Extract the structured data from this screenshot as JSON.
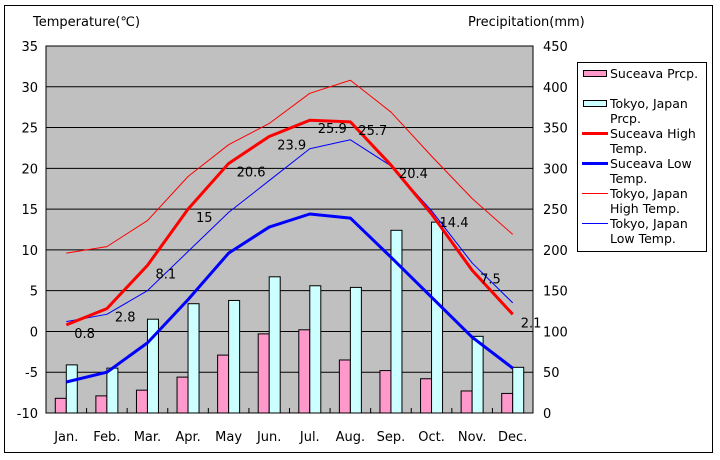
{
  "chart_data": {
    "type": "bar+line",
    "categories": [
      "Jan.",
      "Feb.",
      "Mar.",
      "Apr.",
      "May",
      "Jun.",
      "Jul.",
      "Aug.",
      "Sep.",
      "Oct.",
      "Nov.",
      "Dec."
    ],
    "y_left": {
      "label": "Temperature(℃)",
      "range": [
        -10,
        35
      ],
      "ticks": [
        "35",
        "30",
        "25",
        "20",
        "15",
        "10",
        "5",
        "0",
        "-5",
        "-10"
      ]
    },
    "y_right": {
      "label": "Precipitation(mm)",
      "range": [
        0,
        450
      ],
      "ticks": [
        "450",
        "400",
        "350",
        "300",
        "250",
        "200",
        "150",
        "100",
        "50",
        "0"
      ]
    },
    "grid": true,
    "legend_position": "right",
    "bar_series": [
      {
        "name": "Suceava Prcp.",
        "color": "#ff99cc",
        "values": [
          18,
          21,
          28,
          44,
          71,
          97,
          102,
          65,
          52,
          42,
          27,
          24
        ]
      },
      {
        "name": "Tokyo, Japan Prcp.",
        "color": "#ccffff",
        "values": [
          59,
          55,
          115,
          134,
          138,
          167,
          156,
          154,
          224,
          234,
          94,
          56
        ]
      }
    ],
    "line_series": [
      {
        "name": "Suceava High Temp.",
        "color": "#ff0000",
        "width": "thick",
        "values": [
          0.8,
          2.8,
          8.1,
          15,
          20.6,
          23.9,
          25.9,
          25.7,
          20.4,
          14.4,
          7.5,
          2.1
        ],
        "labels": [
          "0.8",
          "2.8",
          "8.1",
          "15",
          "20.6",
          "23.9",
          "25.9",
          "25.7",
          "20.4",
          "14.4",
          "7.5",
          "2.1"
        ]
      },
      {
        "name": "Suceava Low Temp.",
        "color": "#0000ff",
        "width": "thick",
        "values": [
          -6.2,
          -5.0,
          -1.4,
          3.9,
          9.6,
          12.8,
          14.4,
          13.9,
          9.1,
          4.2,
          -0.7,
          -4.5
        ]
      },
      {
        "name": "Tokyo, Japan High Temp.",
        "color": "#ff0000",
        "width": "thin",
        "values": [
          9.6,
          10.4,
          13.6,
          19.0,
          22.9,
          25.5,
          29.2,
          30.8,
          26.9,
          21.5,
          16.3,
          11.9
        ]
      },
      {
        "name": "Tokyo, Japan Low Temp.",
        "color": "#0000ff",
        "width": "thin",
        "values": [
          1.2,
          2.1,
          5.0,
          9.8,
          14.6,
          18.5,
          22.4,
          23.5,
          20.3,
          14.8,
          8.4,
          3.5
        ]
      }
    ],
    "legend": [
      {
        "lines": [
          "Suceava Prcp."
        ]
      },
      {
        "lines": [
          "Tokyo, Japan",
          "Prcp."
        ]
      },
      {
        "lines": [
          "Suceava High",
          "Temp."
        ]
      },
      {
        "lines": [
          "Suceava Low",
          "Temp."
        ]
      },
      {
        "lines": [
          "Tokyo, Japan",
          "High Temp."
        ]
      },
      {
        "lines": [
          "Tokyo, Japan",
          "Low Temp."
        ]
      }
    ],
    "plot_background": "#c0c0c0"
  }
}
